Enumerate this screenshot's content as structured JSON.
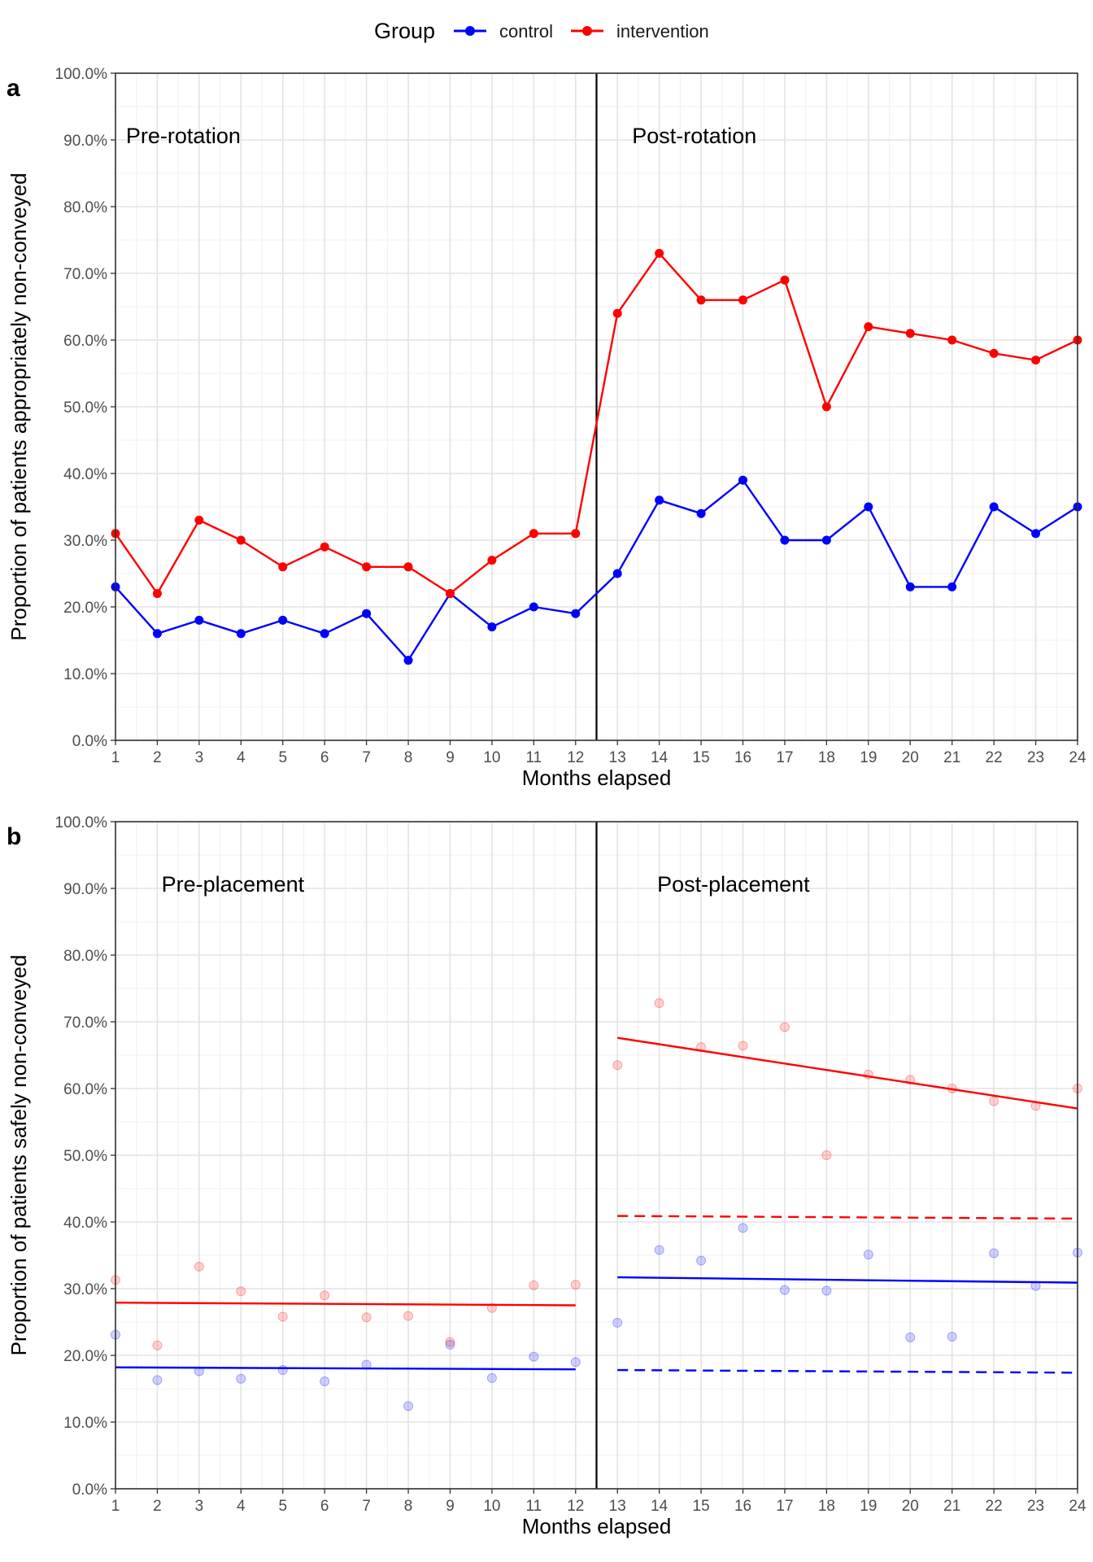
{
  "legend": {
    "title": "Group",
    "items": [
      {
        "label": "control",
        "color": "#0000ff"
      },
      {
        "label": "intervention",
        "color": "#ff0000"
      }
    ]
  },
  "chart_data": [
    {
      "panel_label": "a",
      "type": "line",
      "xlabel": "Months elapsed",
      "ylabel": "Proportion of patients appropriately non-conveyed",
      "xlim": [
        1,
        24
      ],
      "ylim": [
        0,
        100
      ],
      "x_ticks": [
        "1",
        "2",
        "3",
        "4",
        "5",
        "6",
        "7",
        "8",
        "9",
        "10",
        "11",
        "12",
        "13",
        "14",
        "15",
        "16",
        "17",
        "18",
        "19",
        "20",
        "21",
        "22",
        "23",
        "24"
      ],
      "y_ticks": [
        "0.0%",
        "10.0%",
        "20.0%",
        "30.0%",
        "40.0%",
        "50.0%",
        "60.0%",
        "70.0%",
        "80.0%",
        "90.0%",
        "100.0%"
      ],
      "divider_x": 12.5,
      "annotations": [
        {
          "text": "Pre-rotation",
          "x": 1.25,
          "y": 89.5
        },
        {
          "text": "Post-rotation",
          "x": 13.35,
          "y": 89.5
        }
      ],
      "grid": true,
      "legend_position": "top",
      "series": [
        {
          "name": "control",
          "color": "#0000ff",
          "x": [
            1,
            2,
            3,
            4,
            5,
            6,
            7,
            8,
            9,
            10,
            11,
            12,
            13,
            14,
            15,
            16,
            17,
            18,
            19,
            20,
            21,
            22,
            23,
            24
          ],
          "values": [
            23,
            16,
            18,
            16,
            18,
            16,
            19,
            12,
            22,
            17,
            20,
            19,
            25,
            36,
            34,
            39,
            30,
            30,
            35,
            23,
            23,
            35,
            31,
            35
          ]
        },
        {
          "name": "intervention",
          "color": "#ff0000",
          "x": [
            1,
            2,
            3,
            4,
            5,
            6,
            7,
            8,
            9,
            10,
            11,
            12,
            13,
            14,
            15,
            16,
            17,
            18,
            19,
            20,
            21,
            22,
            23,
            24
          ],
          "values": [
            31,
            22,
            33,
            30,
            26,
            29,
            26,
            26,
            22,
            27,
            31,
            31,
            64,
            73,
            66,
            66,
            69,
            50,
            62,
            61,
            60,
            58,
            57,
            60
          ]
        }
      ]
    },
    {
      "panel_label": "b",
      "type": "scatter",
      "xlabel": "Months elapsed",
      "ylabel": "Proportion of patients safely non-conveyed",
      "xlim": [
        1,
        24
      ],
      "ylim": [
        0,
        100
      ],
      "x_ticks": [
        "1",
        "2",
        "3",
        "4",
        "5",
        "6",
        "7",
        "8",
        "9",
        "10",
        "11",
        "12",
        "13",
        "14",
        "15",
        "16",
        "17",
        "18",
        "19",
        "20",
        "21",
        "22",
        "23",
        "24"
      ],
      "y_ticks": [
        "0.0%",
        "10.0%",
        "20.0%",
        "30.0%",
        "40.0%",
        "50.0%",
        "60.0%",
        "70.0%",
        "80.0%",
        "90.0%",
        "100.0%"
      ],
      "divider_x": 12.5,
      "annotations": [
        {
          "text": "Pre-placement",
          "x": 2.1,
          "y": 89.5
        },
        {
          "text": "Post-placement",
          "x": 13.95,
          "y": 89.5
        }
      ],
      "grid": true,
      "series": [
        {
          "name": "control",
          "color": "#0000ff",
          "x": [
            1,
            2,
            3,
            4,
            5,
            6,
            7,
            8,
            9,
            10,
            11,
            12,
            13,
            14,
            15,
            16,
            17,
            18,
            19,
            20,
            21,
            22,
            23,
            24
          ],
          "values": [
            23.1,
            16.3,
            17.6,
            16.5,
            17.8,
            16.1,
            18.6,
            12.4,
            21.6,
            16.6,
            19.8,
            19.0,
            24.9,
            35.8,
            34.2,
            39.1,
            29.8,
            29.7,
            35.1,
            22.7,
            22.8,
            35.3,
            30.4,
            35.4
          ]
        },
        {
          "name": "intervention",
          "color": "#ff0000",
          "x": [
            1,
            2,
            3,
            4,
            5,
            6,
            7,
            8,
            9,
            10,
            11,
            12,
            13,
            14,
            15,
            16,
            17,
            18,
            19,
            20,
            21,
            22,
            23,
            24
          ],
          "values": [
            31.3,
            21.5,
            33.3,
            29.6,
            25.8,
            29.0,
            25.7,
            25.9,
            22.0,
            27.1,
            30.5,
            30.6,
            63.5,
            72.8,
            66.2,
            66.4,
            69.2,
            50.0,
            62.1,
            61.3,
            60.0,
            58.1,
            57.4,
            60.0
          ]
        }
      ],
      "fit_lines": [
        {
          "group": "control",
          "style": "solid",
          "x": [
            1,
            12
          ],
          "y": [
            18.2,
            17.9
          ]
        },
        {
          "group": "intervention",
          "style": "solid",
          "x": [
            1,
            12
          ],
          "y": [
            27.9,
            27.5
          ]
        },
        {
          "group": "control",
          "style": "solid",
          "x": [
            13,
            24
          ],
          "y": [
            31.7,
            30.9
          ]
        },
        {
          "group": "intervention",
          "style": "solid",
          "x": [
            13,
            24
          ],
          "y": [
            67.6,
            57.0
          ]
        },
        {
          "group": "control",
          "style": "dashed",
          "x": [
            13,
            24
          ],
          "y": [
            17.8,
            17.4
          ]
        },
        {
          "group": "intervention",
          "style": "dashed",
          "x": [
            13,
            24
          ],
          "y": [
            40.9,
            40.5
          ]
        }
      ]
    }
  ]
}
